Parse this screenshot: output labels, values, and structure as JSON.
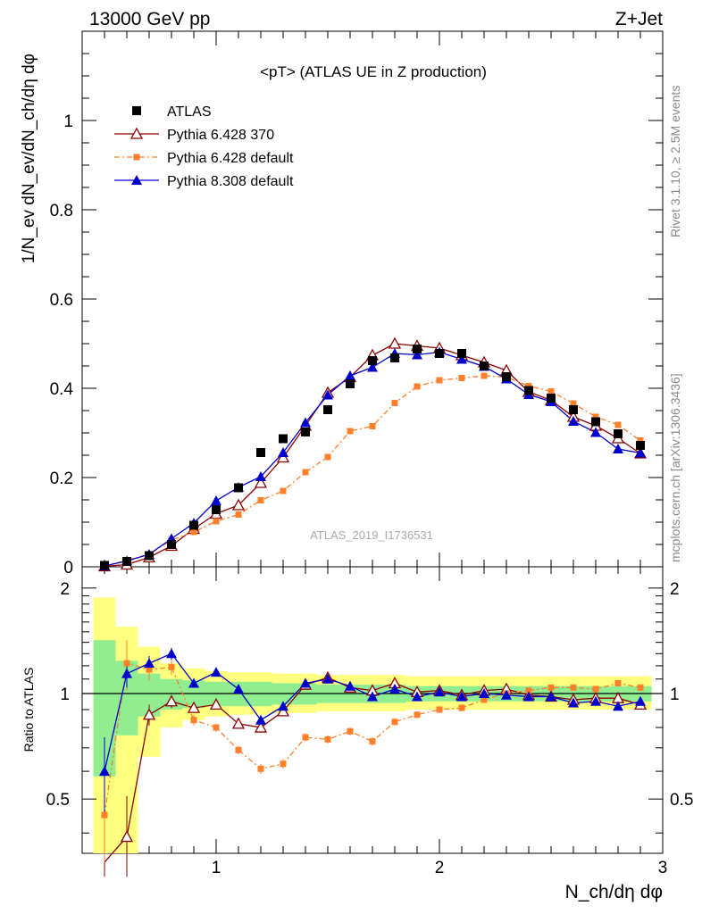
{
  "header": {
    "left": "13000 GeV pp",
    "right": "Z+Jet"
  },
  "side_labels": {
    "rivet": "Rivet 3.1.10, ≥ 2.5M events",
    "mcplots": "mcplots.cern.ch [arXiv:1306.3436]"
  },
  "colors": {
    "atlas": "#000000",
    "pythia6_370": "#8b0000",
    "pythia6_default": "#ff7f2a",
    "pythia8_default": "#0000cc",
    "band_inner": "#90ee90",
    "band_outer": "#ffff80"
  },
  "chart_data": [
    {
      "type": "line",
      "title": "<pT> (ATLAS UE in Z production)",
      "ylabel": "1/N_ev dN_ev/dN_ch/dη dφ",
      "watermark": "ATLAS_2019_I1736531",
      "xlim": [
        0.4,
        3.0
      ],
      "ylim": [
        0,
        1.2
      ],
      "yticks": [
        0,
        0.2,
        0.4,
        0.6,
        0.8,
        1
      ],
      "ytick_labels": [
        "0",
        "0.2",
        "0.4",
        "0.6",
        "0.8",
        "1"
      ],
      "legend_position": "top-left",
      "x": [
        0.5,
        0.6,
        0.7,
        0.8,
        0.9,
        1.0,
        1.1,
        1.2,
        1.3,
        1.4,
        1.5,
        1.6,
        1.7,
        1.8,
        1.9,
        2.0,
        2.1,
        2.2,
        2.3,
        2.4,
        2.5,
        2.6,
        2.7,
        2.8,
        2.9
      ],
      "series": [
        {
          "name": "ATLAS",
          "marker": "square",
          "values": [
            0.003,
            0.012,
            0.025,
            0.05,
            0.093,
            0.128,
            0.177,
            0.256,
            0.287,
            0.302,
            0.352,
            0.41,
            0.462,
            0.468,
            0.488,
            0.478,
            0.478,
            0.45,
            0.426,
            0.395,
            0.378,
            0.352,
            0.325,
            0.298,
            0.272
          ]
        },
        {
          "name": "Pythia 6.428 370",
          "marker": "open-triangle",
          "values": [
            0.001,
            0.005,
            0.021,
            0.047,
            0.085,
            0.119,
            0.138,
            0.188,
            0.245,
            0.316,
            0.39,
            0.425,
            0.474,
            0.5,
            0.495,
            0.49,
            0.474,
            0.458,
            0.44,
            0.392,
            0.373,
            0.336,
            0.316,
            0.288,
            0.254
          ]
        },
        {
          "name": "Pythia 6.428 default",
          "marker": "filled-square-small",
          "values": [
            0.001,
            0.015,
            0.028,
            0.06,
            0.078,
            0.102,
            0.117,
            0.149,
            0.17,
            0.212,
            0.246,
            0.304,
            0.315,
            0.367,
            0.404,
            0.418,
            0.423,
            0.428,
            0.425,
            0.405,
            0.393,
            0.366,
            0.336,
            0.318,
            0.283
          ]
        },
        {
          "name": "Pythia 8.308 default",
          "marker": "filled-triangle",
          "values": [
            0.002,
            0.013,
            0.028,
            0.063,
            0.098,
            0.148,
            0.178,
            0.202,
            0.256,
            0.323,
            0.385,
            0.428,
            0.447,
            0.478,
            0.475,
            0.481,
            0.465,
            0.449,
            0.421,
            0.386,
            0.37,
            0.326,
            0.301,
            0.264,
            0.255
          ]
        }
      ]
    },
    {
      "type": "line",
      "ylabel": "Ratio to ATLAS",
      "xlabel": "N_ch/dη dφ",
      "xlim": [
        0.4,
        3.0
      ],
      "ylim": [
        0.35,
        2.3
      ],
      "yscale": "log",
      "xticks": [
        1,
        2,
        3
      ],
      "xtick_labels": [
        "1",
        "2",
        "3"
      ],
      "yticks": [
        0.5,
        1,
        2
      ],
      "ytick_labels": [
        "0.5",
        "1",
        "2"
      ],
      "reference_line": 1,
      "x": [
        0.5,
        0.6,
        0.7,
        0.8,
        0.9,
        1.0,
        1.1,
        1.2,
        1.3,
        1.4,
        1.5,
        1.6,
        1.7,
        1.8,
        1.9,
        2.0,
        2.1,
        2.2,
        2.3,
        2.4,
        2.5,
        2.6,
        2.7,
        2.8,
        2.9
      ],
      "bands": {
        "x_edges": [
          0.45,
          0.55,
          0.65,
          0.75,
          0.85,
          0.95,
          1.05,
          1.15,
          1.25,
          1.35,
          1.45,
          1.55,
          1.65,
          1.75,
          1.85,
          1.95,
          2.05,
          2.15,
          2.25,
          2.35,
          2.45,
          2.55,
          2.65,
          2.75,
          2.85,
          2.95
        ],
        "inner_low": [
          0.58,
          0.76,
          0.86,
          0.9,
          0.91,
          0.92,
          0.92,
          0.92,
          0.93,
          0.93,
          0.94,
          0.94,
          0.94,
          0.94,
          0.95,
          0.95,
          0.95,
          0.95,
          0.95,
          0.95,
          0.95,
          0.95,
          0.95,
          0.95,
          0.95
        ],
        "inner_high": [
          1.42,
          1.24,
          1.14,
          1.1,
          1.09,
          1.08,
          1.08,
          1.08,
          1.07,
          1.07,
          1.06,
          1.06,
          1.06,
          1.06,
          1.05,
          1.05,
          1.05,
          1.05,
          1.05,
          1.05,
          1.05,
          1.05,
          1.05,
          1.05,
          1.05
        ],
        "outer_low": [
          0.35,
          0.35,
          0.66,
          0.8,
          0.84,
          0.86,
          0.87,
          0.87,
          0.88,
          0.88,
          0.89,
          0.89,
          0.89,
          0.89,
          0.9,
          0.9,
          0.9,
          0.9,
          0.9,
          0.9,
          0.9,
          0.9,
          0.9,
          0.9,
          0.9
        ],
        "outer_high": [
          1.88,
          1.55,
          1.36,
          1.22,
          1.18,
          1.16,
          1.15,
          1.15,
          1.14,
          1.14,
          1.13,
          1.13,
          1.13,
          1.13,
          1.12,
          1.12,
          1.12,
          1.12,
          1.12,
          1.12,
          1.12,
          1.12,
          1.12,
          1.12,
          1.12
        ]
      },
      "series": [
        {
          "name": "Pythia 6.428 370",
          "values": [
            0.33,
            0.39,
            0.87,
            0.95,
            0.91,
            0.93,
            0.82,
            0.8,
            0.89,
            1.06,
            1.11,
            1.04,
            1.02,
            1.07,
            1.01,
            1.02,
            0.99,
            1.02,
            1.03,
            0.99,
            0.98,
            0.96,
            0.97,
            0.97,
            0.93
          ],
          "errors": [
            0.12,
            0.12,
            0.06,
            0.04,
            0.03,
            0.02,
            0.02,
            0.02,
            0.02,
            0.02,
            0.02,
            0.02,
            0.02,
            0.02,
            0.02,
            0.02,
            0.02,
            0.02,
            0.02,
            0.02,
            0.02,
            0.02,
            0.02,
            0.02,
            0.02
          ]
        },
        {
          "name": "Pythia 6.428 default",
          "values": [
            0.45,
            1.22,
            1.17,
            1.19,
            0.84,
            0.8,
            0.69,
            0.61,
            0.63,
            0.75,
            0.74,
            0.78,
            0.73,
            0.83,
            0.87,
            0.9,
            0.91,
            0.96,
            1.0,
            1.02,
            1.04,
            1.04,
            1.03,
            1.07,
            1.04
          ],
          "errors": [
            0.12,
            0.2,
            0.08,
            0.06,
            0.03,
            0.02,
            0.02,
            0.02,
            0.02,
            0.02,
            0.02,
            0.02,
            0.02,
            0.02,
            0.02,
            0.02,
            0.02,
            0.02,
            0.02,
            0.02,
            0.02,
            0.02,
            0.02,
            0.02,
            0.02
          ]
        },
        {
          "name": "Pythia 8.308 default",
          "values": [
            0.6,
            1.14,
            1.22,
            1.3,
            1.07,
            1.15,
            1.03,
            0.84,
            0.92,
            1.07,
            1.1,
            1.05,
            0.98,
            1.03,
            0.98,
            1.01,
            0.98,
            1.0,
            0.99,
            0.98,
            0.98,
            0.94,
            0.95,
            0.92,
            0.95
          ],
          "errors": [
            0.15,
            0.1,
            0.06,
            0.05,
            0.03,
            0.02,
            0.02,
            0.02,
            0.02,
            0.02,
            0.02,
            0.02,
            0.02,
            0.02,
            0.02,
            0.02,
            0.02,
            0.02,
            0.02,
            0.02,
            0.02,
            0.02,
            0.02,
            0.02,
            0.02
          ]
        }
      ]
    }
  ]
}
